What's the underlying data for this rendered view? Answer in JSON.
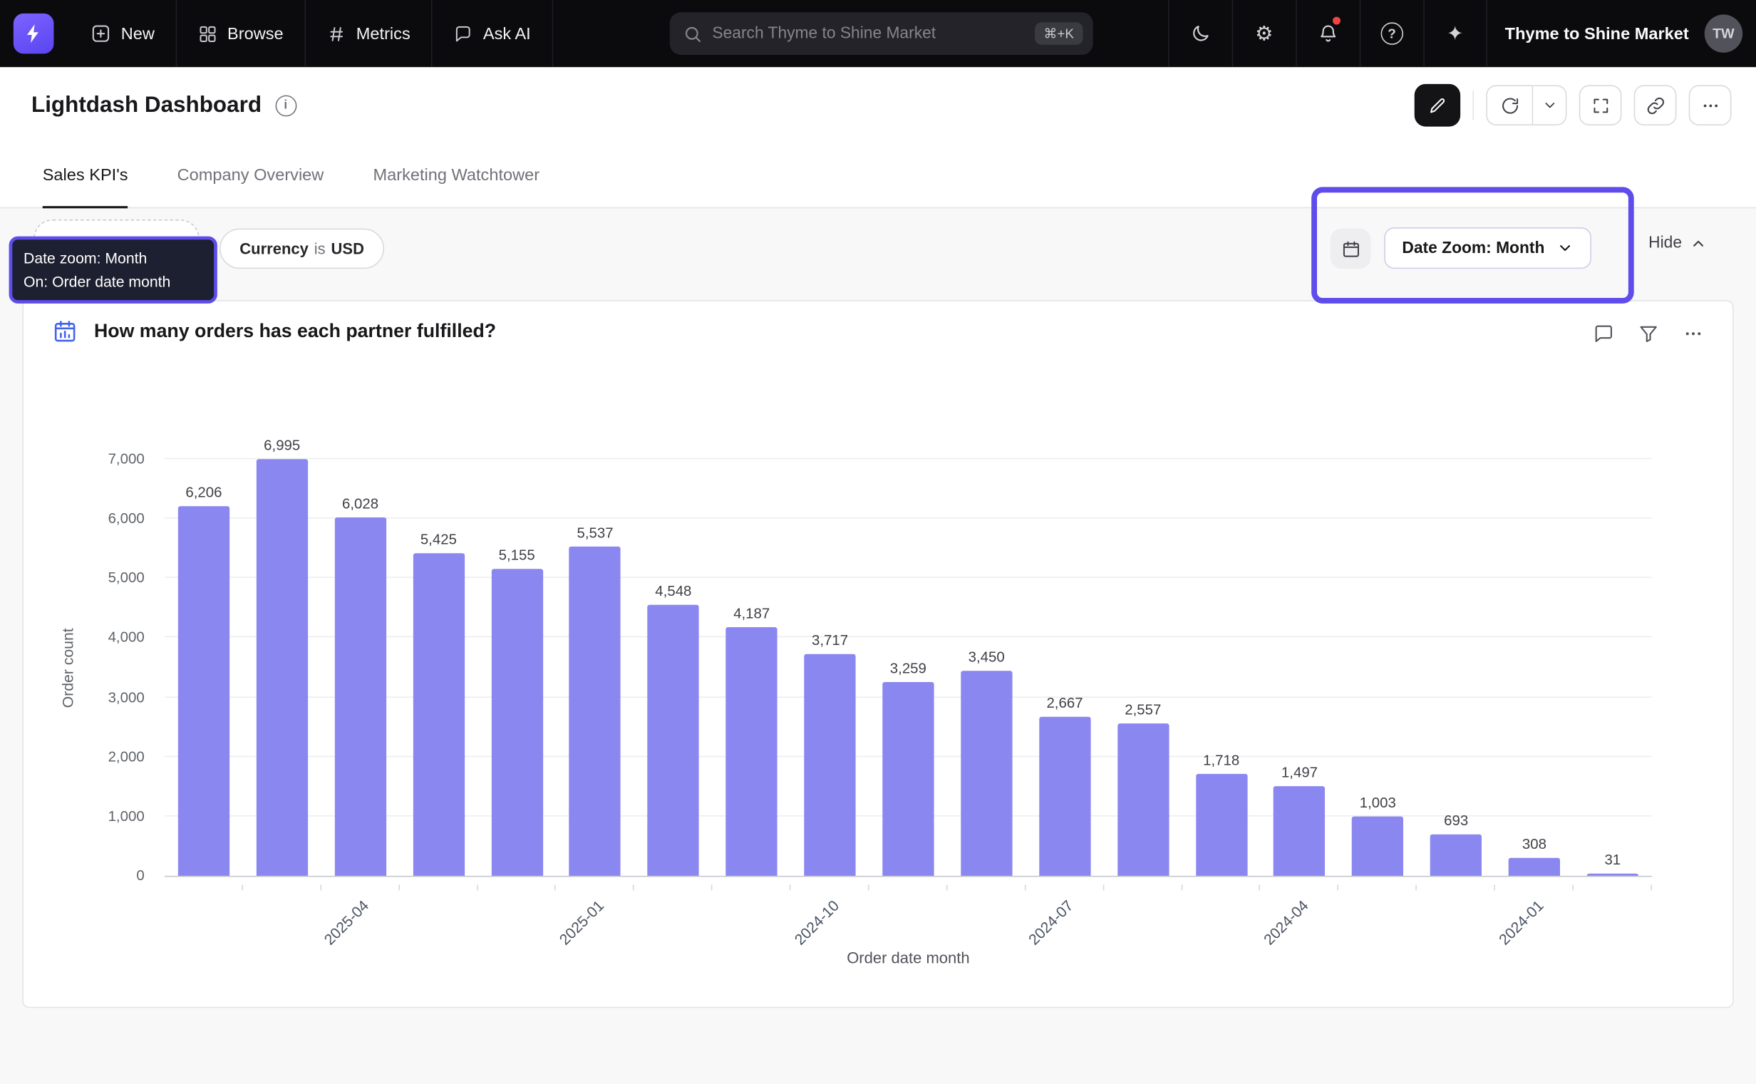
{
  "colors": {
    "accent": "#6d55f6",
    "highlight": "#5e4ceb",
    "navbar_bg": "#0b0b0e",
    "notification_dot": "#ef4444"
  },
  "icons": {
    "gear": "⚙",
    "sparkles": "✦",
    "help": "?",
    "info": "i"
  },
  "navbar": {
    "new_label": "New",
    "browse_label": "Browse",
    "metrics_label": "Metrics",
    "ask_ai_label": "Ask AI",
    "search_placeholder": "Search Thyme to Shine Market",
    "search_shortcut": "⌘+K",
    "org_name": "Thyme to Shine Market",
    "avatar_initials": "TW"
  },
  "header": {
    "title": "Lightdash Dashboard"
  },
  "tabs": [
    {
      "label": "Sales KPI's"
    },
    {
      "label": "Company Overview"
    },
    {
      "label": "Marketing Watchtower"
    }
  ],
  "filters": {
    "date_zoom_tooltip": {
      "line1": "Date zoom: Month",
      "line2": "On: Order date month"
    },
    "currency_chip": {
      "field": "Currency",
      "operator": "is",
      "value": "USD"
    },
    "date_zoom_button": "Date Zoom: Month",
    "hide_label": "Hide"
  },
  "chart_card": {
    "title": "How many orders has each partner fulfilled?"
  },
  "chart_data": {
    "type": "bar",
    "title": "How many orders has each partner fulfilled?",
    "xlabel": "Order date month",
    "ylabel": "Order count",
    "ylim": [
      0,
      7000
    ],
    "grid": true,
    "legend": "none",
    "bar_color": "#8a87f0",
    "y_ticks": [
      0,
      1000,
      2000,
      3000,
      4000,
      5000,
      6000,
      7000
    ],
    "y_tick_labels": [
      "0",
      "1,000",
      "2,000",
      "3,000",
      "4,000",
      "5,000",
      "6,000",
      "7,000"
    ],
    "values": [
      6206,
      6995,
      6028,
      5425,
      5155,
      5537,
      4548,
      4187,
      3717,
      3259,
      3450,
      2667,
      2557,
      1718,
      1497,
      1003,
      693,
      308,
      31
    ],
    "value_labels": [
      "6,206",
      "6,995",
      "6,028",
      "5,425",
      "5,155",
      "5,537",
      "4,548",
      "4,187",
      "3,717",
      "3,259",
      "3,450",
      "2,667",
      "2,557",
      "1,718",
      "1,497",
      "1,003",
      "693",
      "308",
      "31"
    ],
    "x_tick_positions": [
      2,
      5,
      8,
      11,
      14,
      17
    ],
    "x_tick_labels": [
      "2025-04",
      "2025-01",
      "2024-10",
      "2024-07",
      "2024-04",
      "2024-01"
    ]
  }
}
